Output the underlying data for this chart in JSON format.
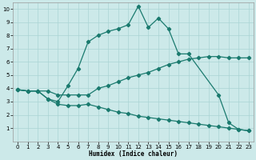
{
  "xlabel": "Humidex (Indice chaleur)",
  "xlim": [
    -0.5,
    23.5
  ],
  "ylim": [
    0,
    10.5
  ],
  "xticks": [
    0,
    1,
    2,
    3,
    4,
    5,
    6,
    7,
    8,
    9,
    10,
    11,
    12,
    13,
    14,
    15,
    16,
    17,
    18,
    19,
    20,
    21,
    22,
    23
  ],
  "yticks": [
    1,
    2,
    3,
    4,
    5,
    6,
    7,
    8,
    9,
    10
  ],
  "bg_color": "#cce9e9",
  "grid_color": "#aad4d4",
  "line_color": "#1a7a6e",
  "line1_x": [
    0,
    1,
    2,
    3,
    4,
    5,
    6,
    7,
    8,
    9,
    10,
    11,
    12,
    13,
    14,
    15,
    16,
    17,
    20,
    21,
    22,
    23
  ],
  "line1_y": [
    3.9,
    3.8,
    3.8,
    3.2,
    3.0,
    4.2,
    5.5,
    7.5,
    8.0,
    8.3,
    8.5,
    8.8,
    10.2,
    8.6,
    9.3,
    8.5,
    6.6,
    6.6,
    3.5,
    1.4,
    0.9,
    0.8
  ],
  "line2_x": [
    0,
    1,
    2,
    3,
    4,
    5,
    6,
    7,
    8,
    9,
    10,
    11,
    12,
    13,
    14,
    15,
    16,
    17,
    18,
    19,
    20,
    21,
    22,
    23
  ],
  "line2_y": [
    3.9,
    3.8,
    3.8,
    3.8,
    3.5,
    3.5,
    3.5,
    3.5,
    4.0,
    4.2,
    4.5,
    4.8,
    5.0,
    5.2,
    5.5,
    5.8,
    6.0,
    6.2,
    6.3,
    6.4,
    6.4,
    6.3,
    6.3,
    6.3
  ],
  "line3_x": [
    0,
    1,
    2,
    3,
    4,
    5,
    6,
    7,
    8,
    9,
    10,
    11,
    12,
    13,
    14,
    15,
    16,
    17,
    18,
    19,
    20,
    21,
    22,
    23
  ],
  "line3_y": [
    3.9,
    3.8,
    3.8,
    3.2,
    2.8,
    2.7,
    2.7,
    2.8,
    2.6,
    2.4,
    2.2,
    2.1,
    1.9,
    1.8,
    1.7,
    1.6,
    1.5,
    1.4,
    1.3,
    1.2,
    1.1,
    1.0,
    0.9,
    0.8
  ]
}
